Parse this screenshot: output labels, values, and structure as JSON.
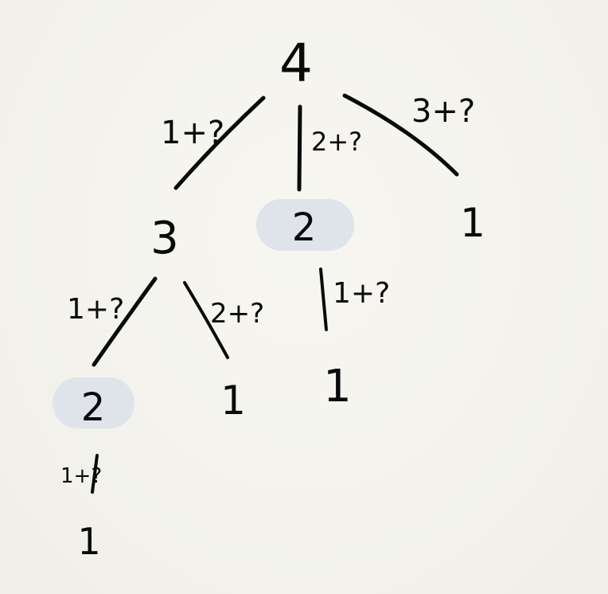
{
  "diagram": {
    "nodes": {
      "root": "4",
      "a": "3",
      "b": "2",
      "c": "1",
      "a_a": "2",
      "a_b": "1",
      "b_a": "1",
      "a_a_a": "1"
    },
    "edges": {
      "root_a": "1+?",
      "root_b": "2+?",
      "root_c": "3+?",
      "a_a_a": "1+?",
      "a_a_b": "2+?",
      "b_b_a": "1+?",
      "aa_aaa": "1+?"
    },
    "highlight_color": "#dfe3ea"
  }
}
